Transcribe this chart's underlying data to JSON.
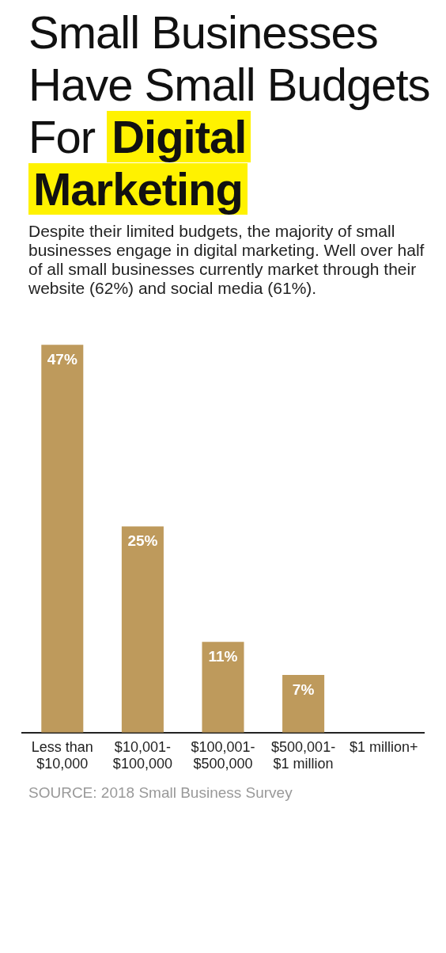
{
  "chart_data": {
    "type": "bar",
    "title": "Small Businesses Have Small Budgets For Digital Marketing",
    "subtitle": "Despite their limited budgets, the majority of small businesses engage in digital marketing. Well over half of all small businesses currently market through their website (62%) and social media (61%).",
    "categories": [
      "Less than $10,000",
      "$10,001- $100,000",
      "$100,001- $500,000",
      "$500,001- $1 million",
      "$1 million+"
    ],
    "values": [
      47,
      25,
      11,
      7,
      null
    ],
    "value_labels": [
      "47%",
      "25%",
      "11%",
      "7%",
      null
    ],
    "color": "#be9a5c",
    "annotations": [
      "SOURCE: 2018 Small Business Survey"
    ]
  }
}
